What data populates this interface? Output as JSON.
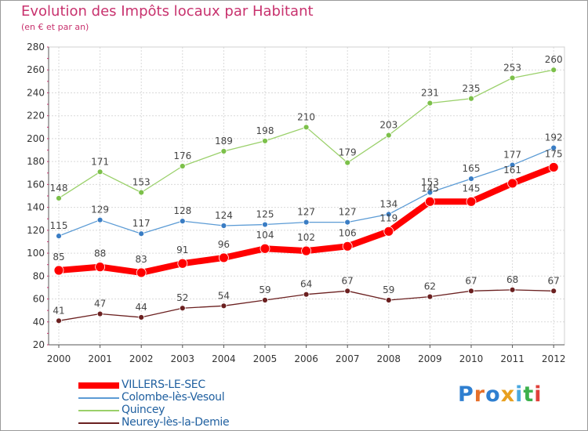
{
  "title": "Evolution des Impôts locaux par Habitant",
  "subtitle": "(en € et par an)",
  "brand": {
    "text": "Proxiti",
    "colors": [
      "#2f7fd0",
      "#e6702a",
      "#2f7fd0",
      "#e8a020",
      "#4aa8e0",
      "#3cb04c",
      "#e0403a"
    ]
  },
  "chart_data": {
    "type": "line",
    "title": "Evolution des Impôts locaux par Habitant",
    "subtitle": "(en € et par an)",
    "x": [
      "2000",
      "2001",
      "2002",
      "2003",
      "2004",
      "2005",
      "2006",
      "2007",
      "2008",
      "2009",
      "2010",
      "2011",
      "2012"
    ],
    "ylim": [
      20,
      280
    ],
    "yticks": [
      20,
      40,
      60,
      80,
      100,
      120,
      140,
      160,
      180,
      200,
      220,
      240,
      260,
      280
    ],
    "grid": true,
    "legend_position": "bottom-left",
    "series": [
      {
        "name": "VILLERS-LE-SEC",
        "color": "#ff0000",
        "values": [
          85,
          88,
          83,
          91,
          96,
          104,
          102,
          106,
          119,
          145,
          145,
          161,
          175
        ]
      },
      {
        "name": "Colombe-lès-Vesoul",
        "color": "#5b9bd5",
        "values": [
          115,
          129,
          117,
          128,
          124,
          125,
          127,
          127,
          134,
          153,
          165,
          177,
          192
        ]
      },
      {
        "name": "Quincey",
        "color": "#9ad06a",
        "values": [
          148,
          171,
          153,
          176,
          189,
          198,
          210,
          179,
          203,
          231,
          235,
          253,
          260
        ]
      },
      {
        "name": "Neurey-lès-la-Demie",
        "color": "#6b2020",
        "values": [
          41,
          47,
          44,
          52,
          54,
          59,
          64,
          67,
          59,
          62,
          67,
          68,
          67
        ]
      }
    ]
  }
}
